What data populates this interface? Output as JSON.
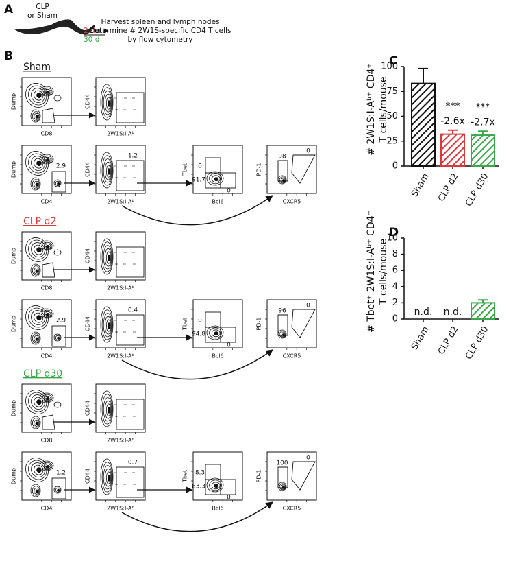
{
  "panel_a": {
    "label": "A",
    "condition": [
      "CLP",
      "or Sham"
    ],
    "time_1": "2 d",
    "or": "or",
    "time_2": "30 d",
    "time_1_color": "#d9393a",
    "time_2_color": "#3aa84a",
    "steps": [
      "Harvest spleen and lymph nodes",
      "Determine # 2W1S-specific CD4 T cells",
      "by flow cytometry"
    ]
  },
  "panel_b": {
    "label": "B",
    "groups": [
      {
        "title": "Sham",
        "color": "#111111",
        "rows": [
          [
            {
              "y_label": "Dump",
              "x_label": "CD8"
            },
            {
              "y_label": "CD44",
              "x_label": "2W1S:I-Aᵇ"
            }
          ],
          [
            {
              "y_label": "Dump",
              "x_label": "CD4",
              "gates": [
                2.9
              ]
            },
            {
              "y_label": "CD44",
              "x_label": "2W1S:I-Aᵇ",
              "gates": [
                1.2
              ]
            },
            {
              "y_label": "Tbet",
              "x_label": "Bcl6",
              "gates": [
                0,
                91.7,
                0
              ]
            },
            {
              "y_label": "PD-1",
              "x_label": "CXCR5",
              "gates": [
                98,
                0
              ]
            }
          ]
        ]
      },
      {
        "title": "CLP d2",
        "color": "#d9393a",
        "rows": [
          [
            {
              "y_label": "Dump",
              "x_label": "CD8"
            },
            {
              "y_label": "CD44",
              "x_label": "2W1S:I-Aᵇ"
            }
          ],
          [
            {
              "y_label": "Dump",
              "x_label": "CD4",
              "gates": [
                2.9
              ]
            },
            {
              "y_label": "CD44",
              "x_label": "2W1S:I-Aᵇ",
              "gates": [
                0.4
              ]
            },
            {
              "y_label": "Tbet",
              "x_label": "Bcl6",
              "gates": [
                0,
                94.8,
                0
              ]
            },
            {
              "y_label": "PD-1",
              "x_label": "CXCR5",
              "gates": [
                96,
                0
              ]
            }
          ]
        ]
      },
      {
        "title": "CLP d30",
        "color": "#3aa84a",
        "rows": [
          [
            {
              "y_label": "Dump",
              "x_label": "CD8"
            },
            {
              "y_label": "CD44",
              "x_label": "2W1S:I-Aᵇ"
            }
          ],
          [
            {
              "y_label": "Dump",
              "x_label": "CD4",
              "gates": [
                1.2
              ]
            },
            {
              "y_label": "CD44",
              "x_label": "2W1S:I-Aᵇ",
              "gates": [
                0.7
              ]
            },
            {
              "y_label": "Tbet",
              "x_label": "Bcl6",
              "gates": [
                8.3,
                83.3,
                0
              ]
            },
            {
              "y_label": "PD-1",
              "x_label": "CXCR5",
              "gates": [
                100,
                0
              ]
            }
          ]
        ]
      }
    ]
  },
  "chart_data": [
    {
      "type": "bar",
      "label": "C",
      "y_label": [
        "# 2W1S:I-Aᵇ⁺ CD4⁺",
        "T cells/mouse"
      ],
      "categories": [
        "Sham",
        "CLP d2",
        "CLP d30"
      ],
      "values": [
        83,
        32,
        31
      ],
      "errors": [
        15,
        4,
        4
      ],
      "colors": [
        "#111111",
        "#d9393a",
        "#3aa84a"
      ],
      "hatch": true,
      "significance": [
        null,
        "***",
        "***"
      ],
      "fold_change": [
        null,
        "-2.6x",
        "-2.7x"
      ],
      "ylim": [
        0,
        100
      ],
      "yticks": [
        0,
        25,
        50,
        75,
        100
      ]
    },
    {
      "type": "bar",
      "label": "D",
      "y_label": [
        "# Tbet⁺ 2W1S:I-Aᵇ⁺ CD4⁺",
        "T cells/mouse"
      ],
      "categories": [
        "Sham",
        "CLP d2",
        "CLP d30"
      ],
      "values": [
        null,
        null,
        2
      ],
      "errors": [
        null,
        null,
        0.35
      ],
      "value_labels": [
        "n.d.",
        "n.d.",
        null
      ],
      "colors": [
        "#111111",
        "#d9393a",
        "#3aa84a"
      ],
      "hatch": true,
      "ylim": [
        0,
        10
      ],
      "yticks": [
        0,
        2,
        4,
        6,
        8,
        10
      ]
    }
  ]
}
